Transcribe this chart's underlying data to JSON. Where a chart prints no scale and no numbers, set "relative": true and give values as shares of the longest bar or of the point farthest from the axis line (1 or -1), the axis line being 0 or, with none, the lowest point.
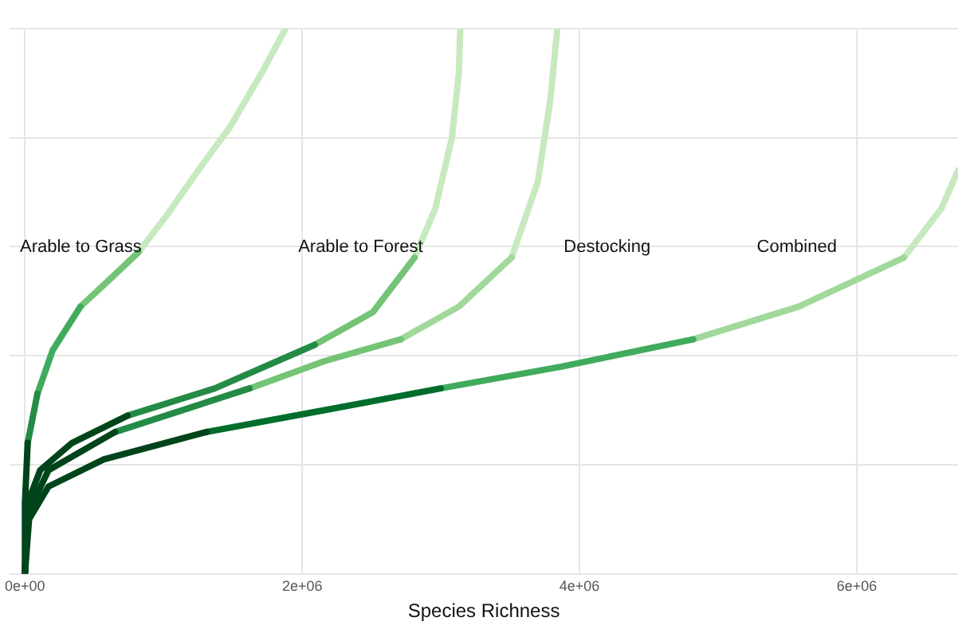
{
  "chart_data": {
    "type": "line",
    "xlabel": "Species Richness",
    "relative": true,
    "grid": true,
    "legend": false,
    "marker": "none",
    "line_style": "solid",
    "xlim": [
      -110000,
      6730000
    ],
    "xticks": [
      {
        "value": 0,
        "label": "0e+00"
      },
      {
        "value": 2000000,
        "label": "2e+06"
      },
      {
        "value": 4000000,
        "label": "4e+06"
      },
      {
        "value": 6000000,
        "label": "6e+06"
      }
    ],
    "annotations": [
      "Arable to Grass",
      "Arable to Forest",
      "Destocking",
      "Combined"
    ],
    "series": [
      {
        "color": "#00441b",
        "x": [
          0,
          0,
          20000
        ],
        "values": [
          0,
          0.13,
          0.24
        ]
      },
      {
        "color": "#238b45",
        "x": [
          20000,
          90000
        ],
        "values": [
          0.24,
          0.33
        ]
      },
      {
        "color": "#41ab5d",
        "x": [
          90000,
          200000,
          400000
        ],
        "values": [
          0.33,
          0.41,
          0.49
        ]
      },
      {
        "color": "#74c476",
        "x": [
          400000,
          570000,
          820000
        ],
        "values": [
          0.49,
          0.53,
          0.59
        ]
      },
      {
        "color": "#c7e9c0",
        "x": [
          820000,
          1030000,
          1250000,
          1480000,
          1710000,
          1880000
        ],
        "values": [
          0.59,
          0.66,
          0.74,
          0.82,
          0.92,
          1.0
        ]
      },
      {
        "color": "#00441b",
        "x": [
          0,
          20000,
          110000,
          340000,
          740000
        ],
        "values": [
          0,
          0.13,
          0.19,
          0.24,
          0.29
        ]
      },
      {
        "color": "#238b45",
        "x": [
          740000,
          1370000,
          2090000
        ],
        "values": [
          0.29,
          0.34,
          0.42
        ]
      },
      {
        "color": "#74c476",
        "x": [
          2090000,
          2510000,
          2810000
        ],
        "values": [
          0.42,
          0.48,
          0.58
        ]
      },
      {
        "color": "#c7e9c0",
        "x": [
          2810000,
          2960000,
          3080000,
          3130000,
          3140000
        ],
        "values": [
          0.58,
          0.67,
          0.8,
          0.92,
          1.0
        ]
      },
      {
        "color": "#00441b",
        "x": [
          0,
          20000,
          170000,
          650000
        ],
        "values": [
          0,
          0.11,
          0.19,
          0.26
        ]
      },
      {
        "color": "#238b45",
        "x": [
          650000,
          1620000
        ],
        "values": [
          0.26,
          0.34
        ]
      },
      {
        "color": "#74c476",
        "x": [
          1620000,
          2160000,
          2710000
        ],
        "values": [
          0.34,
          0.39,
          0.43
        ]
      },
      {
        "color": "#a1d99b",
        "x": [
          2710000,
          3130000,
          3510000
        ],
        "values": [
          0.43,
          0.49,
          0.58
        ]
      },
      {
        "color": "#c7e9c0",
        "x": [
          3510000,
          3700000,
          3790000,
          3840000
        ],
        "values": [
          0.58,
          0.72,
          0.87,
          1.0
        ]
      },
      {
        "color": "#00441b",
        "x": [
          0,
          30000,
          170000,
          570000,
          1310000
        ],
        "values": [
          0,
          0.1,
          0.16,
          0.21,
          0.26
        ]
      },
      {
        "color": "#006d2c",
        "x": [
          1310000,
          2160000,
          3000000
        ],
        "values": [
          0.26,
          0.3,
          0.34
        ]
      },
      {
        "color": "#41ab5d",
        "x": [
          3000000,
          3870000,
          4820000
        ],
        "values": [
          0.34,
          0.38,
          0.43
        ]
      },
      {
        "color": "#a1d99b",
        "x": [
          4820000,
          5580000,
          6340000
        ],
        "values": [
          0.43,
          0.49,
          0.58
        ]
      },
      {
        "color": "#c7e9c0",
        "x": [
          6340000,
          6610000,
          6730000
        ],
        "values": [
          0.58,
          0.67,
          0.74
        ]
      }
    ]
  }
}
